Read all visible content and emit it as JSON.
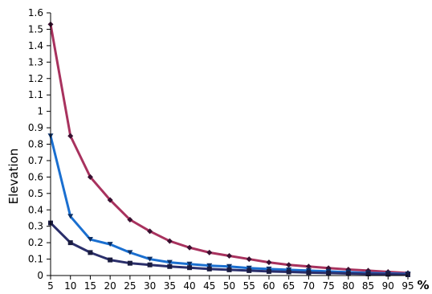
{
  "chart_data": {
    "type": "line",
    "title": "",
    "xlabel": "%",
    "ylabel": "Elevation",
    "x": [
      5,
      10,
      15,
      20,
      25,
      30,
      35,
      40,
      45,
      50,
      55,
      60,
      65,
      70,
      75,
      80,
      85,
      90,
      95
    ],
    "xlim": [
      5,
      95
    ],
    "ylim": [
      0,
      1.6
    ],
    "y_ticks": [
      "0",
      "0.1",
      "0.2",
      "0.3",
      "0.4",
      "0.5",
      "0.6",
      "0.7",
      "0.8",
      "0.9",
      "1",
      "1.1",
      "1.2",
      "1.3",
      "1.4",
      "1.5",
      "1.6"
    ],
    "x_ticks": [
      "5",
      "10",
      "15",
      "20",
      "25",
      "30",
      "35",
      "40",
      "45",
      "50",
      "55",
      "60",
      "65",
      "70",
      "75",
      "80",
      "85",
      "90",
      "95"
    ],
    "grid": false,
    "legend": "none",
    "series": [
      {
        "color": "#a8325e",
        "marker": "diamond",
        "values": [
          1.53,
          0.85,
          0.6,
          0.46,
          0.34,
          0.27,
          0.21,
          0.17,
          0.14,
          0.12,
          0.1,
          0.08,
          0.065,
          0.055,
          0.045,
          0.037,
          0.03,
          0.022,
          0.015
        ]
      },
      {
        "color": "#1a6fd0",
        "marker": "triangle-down",
        "values": [
          0.85,
          0.36,
          0.22,
          0.19,
          0.14,
          0.1,
          0.08,
          0.07,
          0.06,
          0.055,
          0.045,
          0.04,
          0.035,
          0.03,
          0.025,
          0.02,
          0.015,
          0.012,
          0.01
        ]
      },
      {
        "color": "#2b2f6b",
        "marker": "square",
        "values": [
          0.32,
          0.2,
          0.14,
          0.095,
          0.075,
          0.065,
          0.055,
          0.048,
          0.04,
          0.035,
          0.03,
          0.025,
          0.022,
          0.018,
          0.015,
          0.012,
          0.01,
          0.008,
          0.005
        ]
      }
    ]
  }
}
